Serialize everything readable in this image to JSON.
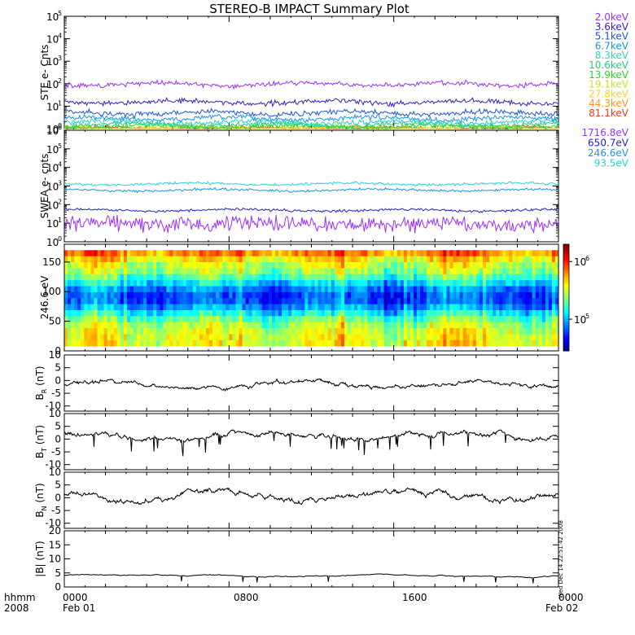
{
  "title": "STEREO-B IMPACT Summary Plot",
  "footer": {
    "hhmm": "hhmm",
    "year": "2008",
    "start_time": "0000",
    "start_date": "Feb 01",
    "mid1": "0800",
    "mid2": "1600",
    "end_time": "0000",
    "end_date": "Feb 02"
  },
  "timestamp": "Wed Dec 14 22:51:42 2008",
  "chart_data": [
    {
      "type": "line",
      "panel": "ste",
      "ylabel": "STE e- Cnts",
      "yscale": "log",
      "ylim": [
        1,
        100000
      ],
      "yticks": [
        {
          "exp": "0",
          "v": 1
        },
        {
          "exp": "1",
          "v": 10
        },
        {
          "exp": "2",
          "v": 100
        },
        {
          "exp": "3",
          "v": 1000
        },
        {
          "exp": "4",
          "v": 10000
        },
        {
          "exp": "5",
          "v": 100000
        }
      ],
      "xlim": [
        0,
        24
      ],
      "series": [
        {
          "name": "2.0keV",
          "color": "#9b30ff",
          "level": 95
        },
        {
          "name": "3.6keV",
          "color": "#3a1cc8",
          "level": 15
        },
        {
          "name": "5.1keV",
          "color": "#1c55dc",
          "level": 5
        },
        {
          "name": "6.7keV",
          "color": "#1a96e6",
          "level": 2.8
        },
        {
          "name": "8.3keV",
          "color": "#2cd2c8",
          "level": 1.9
        },
        {
          "name": "10.6keV",
          "color": "#1cd282",
          "level": 1.5
        },
        {
          "name": "13.9keV",
          "color": "#1edc1e",
          "level": 1.25
        },
        {
          "name": "19.1keV",
          "color": "#c8e61e",
          "level": 1.1
        },
        {
          "name": "27.8keV",
          "color": "#ffd21e",
          "level": 1.05
        },
        {
          "name": "44.3keV",
          "color": "#ff961e",
          "level": 1.02
        },
        {
          "name": "81.1keV",
          "color": "#e63c1e",
          "level": 1.0
        }
      ]
    },
    {
      "type": "line",
      "panel": "swea",
      "ylabel": "SWEA e- cnts",
      "yscale": "log",
      "ylim": [
        1,
        1000000
      ],
      "yticks": [
        {
          "exp": "0",
          "v": 1
        },
        {
          "exp": "1",
          "v": 10
        },
        {
          "exp": "2",
          "v": 100
        },
        {
          "exp": "3",
          "v": 1000
        },
        {
          "exp": "4",
          "v": 10000
        },
        {
          "exp": "5",
          "v": 100000
        },
        {
          "exp": "6",
          "v": 1000000
        }
      ],
      "xlim": [
        0,
        24
      ],
      "series": [
        {
          "name": "1716.8eV",
          "color": "#9b30ff",
          "level": 9
        },
        {
          "name": "650.7eV",
          "color": "#2020d0",
          "level": 50
        },
        {
          "name": "246.6eV",
          "color": "#1e96e6",
          "level": 600
        },
        {
          "name": "93.5eV",
          "color": "#28d2dc",
          "level": 1300
        }
      ]
    },
    {
      "type": "heatmap",
      "panel": "pad",
      "ylabel": "246.6 eV",
      "ylim": [
        0,
        180
      ],
      "yticks": [
        0,
        50,
        100,
        150
      ],
      "xlim": [
        0,
        24
      ],
      "colorbar": {
        "scale": "log",
        "ticks": [
          {
            "exp": "5",
            "v": 100000
          },
          {
            "exp": "6",
            "v": 1000000
          }
        ]
      }
    },
    {
      "type": "line",
      "panel": "br",
      "ylabel_main": "B",
      "ylabel_sub": "R",
      "ylabel_unit": " (nT)",
      "ylim": [
        -12,
        10
      ],
      "yticks": [
        -10,
        -5,
        0,
        5,
        10
      ],
      "xlim": [
        0,
        24
      ],
      "series": [
        {
          "mean": -1.5,
          "amp": 1.8
        }
      ]
    },
    {
      "type": "line",
      "panel": "bt",
      "ylabel_main": "B",
      "ylabel_sub": "T",
      "ylabel_unit": " (nT)",
      "ylim": [
        -12,
        10
      ],
      "yticks": [
        -10,
        -5,
        0,
        5,
        10
      ],
      "xlim": [
        0,
        24
      ],
      "series": [
        {
          "mean": 1,
          "amp": 2.5
        }
      ]
    },
    {
      "type": "line",
      "panel": "bn",
      "ylabel_main": "B",
      "ylabel_sub": "N",
      "ylabel_unit": " (nT)",
      "ylim": [
        -12,
        10
      ],
      "yticks": [
        -10,
        -5,
        0,
        5,
        10
      ],
      "xlim": [
        0,
        24
      ],
      "series": [
        {
          "mean": 1,
          "amp": 2.8
        }
      ]
    },
    {
      "type": "line",
      "panel": "bmag",
      "ylabel_main": "|B|",
      "ylabel_unit": " (nT)",
      "ylim": [
        0,
        20
      ],
      "yticks": [
        0,
        5,
        10,
        15,
        20
      ],
      "xlim": [
        0,
        24
      ],
      "series": [
        {
          "mean": 4,
          "amp": 0.6
        }
      ]
    }
  ]
}
